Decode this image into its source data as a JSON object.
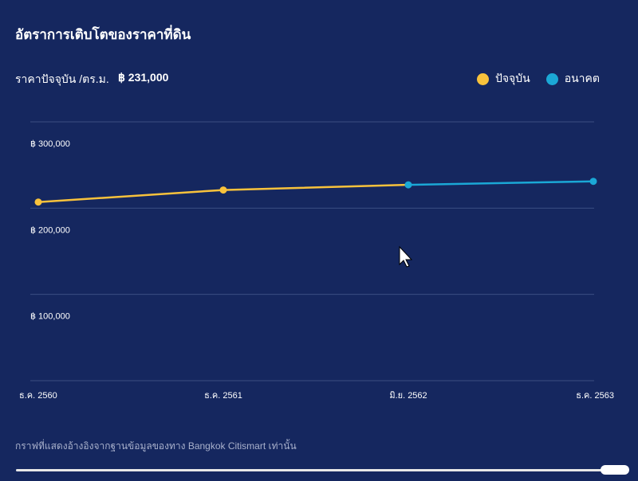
{
  "header": {
    "title": "อัตราการเติบโตของราคาที่ดิน",
    "price_label": "ราคาปัจจุบัน /ตร.ม.",
    "price_value": "฿ 231,000"
  },
  "colors": {
    "current": "#f8c23c",
    "future": "#1ba8d6",
    "grid": "#3a4d82"
  },
  "chart_data": {
    "type": "line",
    "title": "อัตราการเติบโตของราคาที่ดิน",
    "categories": [
      "ธ.ค. 2560",
      "ธ.ค. 2561",
      "มิ.ย. 2562",
      "ธ.ค. 2563"
    ],
    "series": [
      {
        "name": "ปัจจุบัน",
        "values": [
          207000,
          221000,
          227000,
          null
        ]
      },
      {
        "name": "อนาคต",
        "values": [
          null,
          null,
          227000,
          231000
        ]
      }
    ],
    "yticks": [
      100000,
      200000,
      300000
    ],
    "ytick_labels": [
      "฿ 100,000",
      "฿ 200,000",
      "฿ 300,000"
    ],
    "ylim": [
      0,
      300000
    ],
    "grid": true,
    "legend": "top-right",
    "legend_labels": [
      "ปัจจุบัน",
      "อนาคต"
    ]
  },
  "footer": {
    "note": "กราฟที่แสดงอ้างอิงจากฐานข้อมูลของทาง Bangkok Citismart เท่านั้น"
  }
}
